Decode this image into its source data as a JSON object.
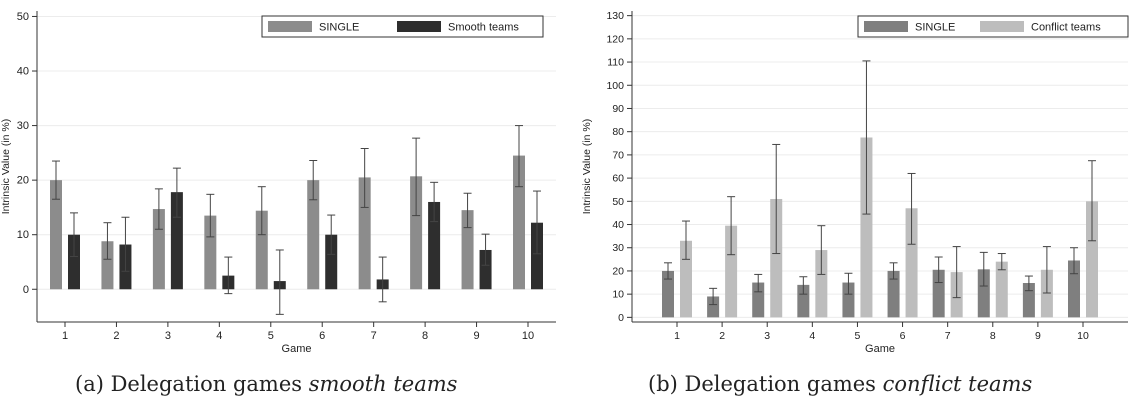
{
  "chart_data": [
    {
      "type": "bar",
      "xlabel": "Game",
      "ylabel": "Intrinsic Value (in %)",
      "categories": [
        "1",
        "2",
        "3",
        "4",
        "5",
        "6",
        "7",
        "8",
        "9",
        "10"
      ],
      "ylim": [
        -6,
        51
      ],
      "yticks": [
        0,
        10,
        20,
        30,
        40,
        50
      ],
      "grid": true,
      "legend_position": "top-right",
      "series": [
        {
          "name": "SINGLE",
          "color": "#8c8c8c",
          "values": [
            20,
            8.8,
            14.7,
            13.5,
            14.4,
            20,
            20.5,
            20.7,
            14.5,
            24.5
          ],
          "err_low": [
            16.5,
            5.5,
            11,
            9.6,
            10,
            16.4,
            15,
            13.5,
            11.3,
            18.8
          ],
          "err_high": [
            23.5,
            12.2,
            18.4,
            17.4,
            18.8,
            23.6,
            25.8,
            27.7,
            17.6,
            30
          ]
        },
        {
          "name": "Smooth teams",
          "color": "#2e2e2e",
          "values": [
            10,
            8.2,
            17.8,
            2.5,
            1.5,
            10,
            1.8,
            16,
            7.2,
            12.2
          ],
          "err_low": [
            6,
            3.3,
            13.2,
            -0.8,
            -4.6,
            6.4,
            -2.3,
            12.4,
            4.4,
            6.5
          ],
          "err_high": [
            14,
            13.2,
            22.2,
            5.9,
            7.2,
            13.6,
            5.9,
            19.6,
            10.1,
            18
          ]
        }
      ]
    },
    {
      "type": "bar",
      "xlabel": "Game",
      "ylabel": "Intrinsic Value (in %)",
      "categories": [
        "1",
        "2",
        "3",
        "4",
        "5",
        "6",
        "7",
        "8",
        "9",
        "10"
      ],
      "ylim": [
        -2,
        132
      ],
      "yticks": [
        0,
        10,
        20,
        30,
        40,
        50,
        60,
        70,
        80,
        90,
        100,
        110,
        120,
        130
      ],
      "grid": true,
      "legend_position": "top-right",
      "series": [
        {
          "name": "SINGLE",
          "color": "#7f7f7f",
          "values": [
            20,
            9,
            15,
            14,
            15,
            20,
            20.5,
            20.7,
            14.8,
            24.5
          ],
          "err_low": [
            16.5,
            5.5,
            11,
            10,
            10,
            16.5,
            15,
            13.5,
            11.5,
            18.8
          ],
          "err_high": [
            23.5,
            12.5,
            18.5,
            17.5,
            19,
            23.5,
            26,
            28,
            17.8,
            30
          ]
        },
        {
          "name": "Conflict teams",
          "color": "#bdbdbd",
          "values": [
            33,
            39.5,
            51,
            29,
            77.5,
            47,
            19.5,
            24,
            20.5,
            50
          ],
          "err_low": [
            25,
            27,
            27.5,
            18.5,
            44.5,
            31.5,
            8.5,
            20.5,
            10.5,
            33
          ],
          "err_high": [
            41.5,
            52,
            74.5,
            39.5,
            110.5,
            62,
            30.5,
            27.5,
            30.5,
            67.5
          ]
        }
      ]
    }
  ],
  "captions": [
    {
      "prefix": "(a) Delegation games ",
      "emph": "smooth teams"
    },
    {
      "prefix": "(b) Delegation games ",
      "emph": "conflict teams"
    }
  ]
}
